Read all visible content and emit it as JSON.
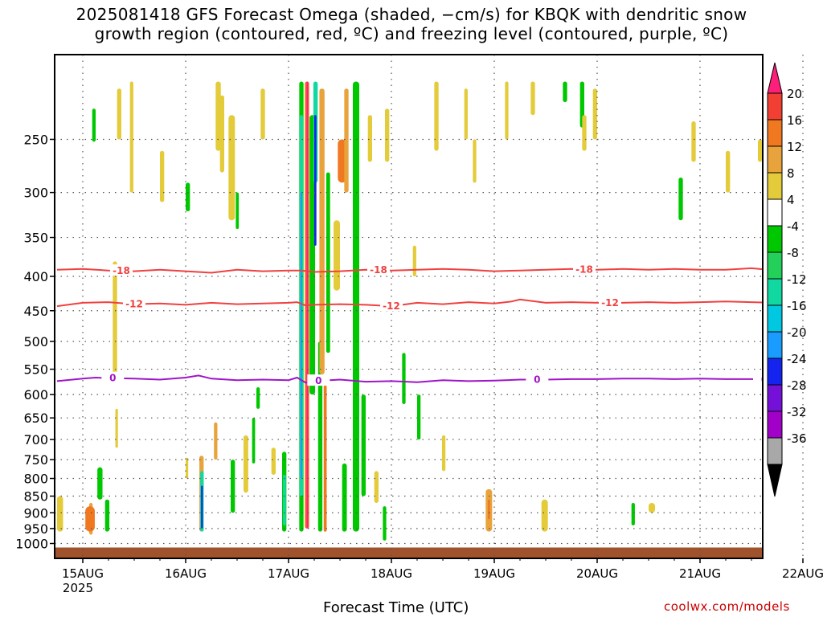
{
  "title": {
    "line1": "2025081418 GFS Forecast Omega (shaded, −cm/s) for KBQK with dendritic snow",
    "line2": "growth region (contoured, red, ºC) and freezing level (contoured, purple, ºC)"
  },
  "credit": "coolwx.com/models",
  "chart_data": {
    "type": "heatmap",
    "xlabel": "Forecast Time (UTC)",
    "ylabel": "",
    "x_ticks": [
      "15AUG",
      "16AUG",
      "17AUG",
      "18AUG",
      "19AUG",
      "20AUG",
      "21AUG",
      "22AUG"
    ],
    "x_tick_sub": "2025",
    "x_range_hours": [
      -6,
      177
    ],
    "y_ticks": [
      250,
      300,
      350,
      400,
      450,
      500,
      550,
      600,
      650,
      700,
      750,
      800,
      850,
      900,
      950,
      1000
    ],
    "y_range_hpa": [
      200,
      1000
    ],
    "y_scale": "log",
    "grid": true,
    "colorbar": {
      "labels": [
        "20",
        "16",
        "12",
        "8",
        "4",
        "-4",
        "-8",
        "-12",
        "-16",
        "-20",
        "-24",
        "-28",
        "-32",
        "-36"
      ],
      "colors": [
        "#ff1f7a",
        "#f23f33",
        "#f07820",
        "#e8a33c",
        "#e4cb3a",
        "#ffffff",
        "#00c800",
        "#22d05a",
        "#10d8a0",
        "#00c8e0",
        "#1a9cff",
        "#1424ee",
        "#7410d8",
        "#a000c8",
        "#a8a8a8",
        "#000000"
      ]
    },
    "contours": {
      "dendritic": [
        {
          "value": -18,
          "label": "-18",
          "color": "#f04040",
          "label_hours": [
            9,
            69,
            117,
            171
          ],
          "points": [
            [
              -6,
              391
            ],
            [
              0,
              390
            ],
            [
              6,
              392
            ],
            [
              12,
              393
            ],
            [
              18,
              391
            ],
            [
              24,
              393
            ],
            [
              30,
              395
            ],
            [
              36,
              391
            ],
            [
              42,
              393
            ],
            [
              48,
              392
            ],
            [
              51,
              392
            ],
            [
              54,
              394
            ],
            [
              60,
              393
            ],
            [
              66,
              391
            ],
            [
              72,
              392
            ],
            [
              78,
              391
            ],
            [
              84,
              390
            ],
            [
              90,
              391
            ],
            [
              96,
              393
            ],
            [
              102,
              392
            ],
            [
              108,
              391
            ],
            [
              114,
              390
            ],
            [
              120,
              391
            ],
            [
              126,
              390
            ],
            [
              132,
              391
            ],
            [
              138,
              390
            ],
            [
              144,
              391
            ],
            [
              150,
              391
            ],
            [
              156,
              389
            ],
            [
              162,
              392
            ],
            [
              168,
              391
            ],
            [
              172,
              385
            ],
            [
              174,
              374
            ],
            [
              176,
              375
            ],
            [
              177,
              388
            ]
          ]
        },
        {
          "value": -12,
          "label": "-12",
          "color": "#f04040",
          "label_hours": [
            12,
            72,
            123,
            171
          ],
          "points": [
            [
              -6,
              443
            ],
            [
              0,
              438
            ],
            [
              6,
              437
            ],
            [
              12,
              440
            ],
            [
              18,
              439
            ],
            [
              24,
              441
            ],
            [
              30,
              438
            ],
            [
              36,
              440
            ],
            [
              42,
              439
            ],
            [
              48,
              438
            ],
            [
              50,
              437
            ],
            [
              52,
              442
            ],
            [
              54,
              441
            ],
            [
              60,
              440
            ],
            [
              66,
              441
            ],
            [
              72,
              443
            ],
            [
              78,
              438
            ],
            [
              84,
              440
            ],
            [
              90,
              437
            ],
            [
              96,
              439
            ],
            [
              100,
              436
            ],
            [
              102,
              433
            ],
            [
              108,
              438
            ],
            [
              114,
              437
            ],
            [
              120,
              438
            ],
            [
              126,
              438
            ],
            [
              132,
              437
            ],
            [
              138,
              438
            ],
            [
              144,
              437
            ],
            [
              150,
              436
            ],
            [
              156,
              437
            ],
            [
              162,
              438
            ],
            [
              168,
              436
            ],
            [
              172,
              426
            ],
            [
              174,
              426
            ],
            [
              177,
              440
            ]
          ]
        },
        {
          "value": 0,
          "label": "0",
          "color": "#a014c8",
          "label_hours": [
            7,
            55,
            106,
            159
          ],
          "points": [
            [
              -6,
              573
            ],
            [
              0,
              568
            ],
            [
              3,
              566
            ],
            [
              6,
              567
            ],
            [
              12,
              568
            ],
            [
              18,
              570
            ],
            [
              24,
              566
            ],
            [
              27,
              562
            ],
            [
              30,
              568
            ],
            [
              36,
              571
            ],
            [
              42,
              570
            ],
            [
              48,
              571
            ],
            [
              50,
              566
            ],
            [
              52,
              576
            ],
            [
              54,
              573
            ],
            [
              60,
              570
            ],
            [
              66,
              574
            ],
            [
              72,
              573
            ],
            [
              78,
              575
            ],
            [
              84,
              571
            ],
            [
              90,
              573
            ],
            [
              96,
              572
            ],
            [
              102,
              570
            ],
            [
              108,
              570
            ],
            [
              114,
              569
            ],
            [
              120,
              569
            ],
            [
              126,
              568
            ],
            [
              132,
              568
            ],
            [
              138,
              569
            ],
            [
              144,
              568
            ],
            [
              150,
              569
            ],
            [
              156,
              569
            ],
            [
              162,
              571
            ],
            [
              168,
              569
            ],
            [
              170,
              563
            ],
            [
              174,
              563
            ],
            [
              177,
              572
            ]
          ]
        }
      ]
    },
    "shaded_regions": [
      {
        "x0": 2.2,
        "x1": 3.0,
        "p0": 225,
        "p1": 252,
        "value": -6
      },
      {
        "x0": 1.5,
        "x1": 2.3,
        "p0": 870,
        "p1": 970,
        "value": 10
      },
      {
        "x0": 0.6,
        "x1": 2.8,
        "p0": 880,
        "p1": 960,
        "value": 12
      },
      {
        "x0": -6.0,
        "x1": -4.6,
        "p0": 850,
        "p1": 960,
        "value": 5
      },
      {
        "x0": 5.2,
        "x1": 6.2,
        "p0": 860,
        "p1": 960,
        "value": -6
      },
      {
        "x0": 3.4,
        "x1": 4.6,
        "p0": 770,
        "p1": 860,
        "value": -6
      },
      {
        "x0": 7.0,
        "x1": 8.0,
        "p0": 380,
        "p1": 560,
        "value": 5
      },
      {
        "x0": 7.6,
        "x1": 8.2,
        "p0": 630,
        "p1": 720,
        "value": 5
      },
      {
        "x0": 11.0,
        "x1": 11.8,
        "p0": 205,
        "p1": 300,
        "value": 5
      },
      {
        "x0": 24.0,
        "x1": 24.6,
        "p0": 745,
        "p1": 800,
        "value": 5
      },
      {
        "x0": 27.2,
        "x1": 28.2,
        "p0": 740,
        "p1": 960,
        "value": 8
      },
      {
        "x0": 27.4,
        "x1": 28.2,
        "p0": 780,
        "p1": 960,
        "value": -14
      },
      {
        "x0": 27.6,
        "x1": 28.0,
        "p0": 820,
        "p1": 950,
        "value": -26
      },
      {
        "x0": 24.0,
        "x1": 25.0,
        "p0": 290,
        "p1": 320,
        "value": -6
      },
      {
        "x0": 30.6,
        "x1": 31.4,
        "p0": 660,
        "p1": 750,
        "value": 10
      },
      {
        "x0": 34.5,
        "x1": 35.5,
        "p0": 750,
        "p1": 900,
        "value": -6
      },
      {
        "x0": 37.5,
        "x1": 38.6,
        "p0": 690,
        "p1": 840,
        "value": 5
      },
      {
        "x0": 39.5,
        "x1": 40.2,
        "p0": 650,
        "p1": 760,
        "value": -6
      },
      {
        "x0": 40.5,
        "x1": 41.3,
        "p0": 585,
        "p1": 630,
        "value": -6
      },
      {
        "x0": 18.0,
        "x1": 19.0,
        "p0": 260,
        "p1": 310,
        "value": 5
      },
      {
        "x0": 8.0,
        "x1": 9.0,
        "p0": 210,
        "p1": 250,
        "value": 5
      },
      {
        "x0": 31.0,
        "x1": 32.2,
        "p0": 205,
        "p1": 260,
        "value": 5
      },
      {
        "x0": 32.0,
        "x1": 33.0,
        "p0": 215,
        "p1": 280,
        "value": 5
      },
      {
        "x0": 34.0,
        "x1": 35.5,
        "p0": 230,
        "p1": 330,
        "value": 5
      },
      {
        "x0": 35.7,
        "x1": 36.4,
        "p0": 300,
        "p1": 340,
        "value": -6
      },
      {
        "x0": 41.5,
        "x1": 42.5,
        "p0": 210,
        "p1": 250,
        "value": 5
      },
      {
        "x0": 44.0,
        "x1": 45.0,
        "p0": 720,
        "p1": 790,
        "value": 5
      },
      {
        "x0": 46.5,
        "x1": 47.5,
        "p0": 730,
        "p1": 960,
        "value": -6
      },
      {
        "x0": 46.7,
        "x1": 47.4,
        "p0": 790,
        "p1": 940,
        "value": -14
      },
      {
        "x0": 50.5,
        "x1": 51.5,
        "p0": 205,
        "p1": 960,
        "value": -6
      },
      {
        "x0": 50.6,
        "x1": 51.4,
        "p0": 230,
        "p1": 850,
        "value": -14
      },
      {
        "x0": 50.8,
        "x1": 51.2,
        "p0": 300,
        "p1": 800,
        "value": -21
      },
      {
        "x0": 51.8,
        "x1": 52.8,
        "p0": 205,
        "p1": 950,
        "value": 14
      },
      {
        "x0": 52.2,
        "x1": 52.6,
        "p0": 205,
        "p1": 950,
        "value": 22
      },
      {
        "x0": 52.9,
        "x1": 54.2,
        "p0": 230,
        "p1": 600,
        "value": -6
      },
      {
        "x0": 53.8,
        "x1": 54.8,
        "p0": 205,
        "p1": 290,
        "value": -14
      },
      {
        "x0": 54.0,
        "x1": 54.5,
        "p0": 230,
        "p1": 360,
        "value": -26
      },
      {
        "x0": 54.9,
        "x1": 55.9,
        "p0": 500,
        "p1": 960,
        "value": -6
      },
      {
        "x0": 55.2,
        "x1": 56.4,
        "p0": 210,
        "p1": 560,
        "value": 10
      },
      {
        "x0": 56.2,
        "x1": 56.9,
        "p0": 560,
        "p1": 960,
        "value": 14
      },
      {
        "x0": 56.8,
        "x1": 57.7,
        "p0": 280,
        "p1": 520,
        "value": -6
      },
      {
        "x0": 58.5,
        "x1": 60.0,
        "p0": 330,
        "p1": 420,
        "value": 5
      },
      {
        "x0": 59.5,
        "x1": 61.5,
        "p0": 250,
        "p1": 290,
        "value": 12
      },
      {
        "x0": 61.0,
        "x1": 62.0,
        "p0": 210,
        "p1": 300,
        "value": 10
      },
      {
        "x0": 60.5,
        "x1": 61.6,
        "p0": 760,
        "p1": 960,
        "value": -6
      },
      {
        "x0": 63.0,
        "x1": 64.5,
        "p0": 205,
        "p1": 960,
        "value": -6
      },
      {
        "x0": 65.0,
        "x1": 66.0,
        "p0": 600,
        "p1": 850,
        "value": -6
      },
      {
        "x0": 66.5,
        "x1": 67.5,
        "p0": 230,
        "p1": 270,
        "value": 5
      },
      {
        "x0": 68.0,
        "x1": 69.0,
        "p0": 780,
        "p1": 870,
        "value": 5
      },
      {
        "x0": 70.5,
        "x1": 71.5,
        "p0": 225,
        "p1": 270,
        "value": 5
      },
      {
        "x0": 70.0,
        "x1": 70.8,
        "p0": 880,
        "p1": 990,
        "value": -6
      },
      {
        "x0": 74.5,
        "x1": 75.3,
        "p0": 520,
        "p1": 620,
        "value": -6
      },
      {
        "x0": 77.0,
        "x1": 77.8,
        "p0": 360,
        "p1": 400,
        "value": 5
      },
      {
        "x0": 78.0,
        "x1": 78.8,
        "p0": 600,
        "p1": 700,
        "value": -6
      },
      {
        "x0": 82.0,
        "x1": 83.0,
        "p0": 205,
        "p1": 260,
        "value": 5
      },
      {
        "x0": 83.8,
        "x1": 84.6,
        "p0": 690,
        "p1": 780,
        "value": 5
      },
      {
        "x0": 89.0,
        "x1": 89.8,
        "p0": 210,
        "p1": 250,
        "value": 5
      },
      {
        "x0": 91.0,
        "x1": 91.8,
        "p0": 250,
        "p1": 290,
        "value": 5
      },
      {
        "x0": 94.0,
        "x1": 95.5,
        "p0": 830,
        "p1": 960,
        "value": 10
      },
      {
        "x0": 94.5,
        "x1": 95.0,
        "p0": 860,
        "p1": 920,
        "value": 12
      },
      {
        "x0": 98.5,
        "x1": 99.3,
        "p0": 205,
        "p1": 250,
        "value": 5
      },
      {
        "x0": 104.5,
        "x1": 105.5,
        "p0": 205,
        "p1": 230,
        "value": 5
      },
      {
        "x0": 107.0,
        "x1": 108.5,
        "p0": 860,
        "p1": 960,
        "value": 5
      },
      {
        "x0": 112.0,
        "x1": 113.0,
        "p0": 205,
        "p1": 220,
        "value": -6
      },
      {
        "x0": 116.0,
        "x1": 117.0,
        "p0": 205,
        "p1": 240,
        "value": -6
      },
      {
        "x0": 116.5,
        "x1": 117.5,
        "p0": 230,
        "p1": 260,
        "value": 5
      },
      {
        "x0": 119.0,
        "x1": 120.0,
        "p0": 210,
        "p1": 250,
        "value": 5
      },
      {
        "x0": 128.0,
        "x1": 128.8,
        "p0": 870,
        "p1": 940,
        "value": -6
      },
      {
        "x0": 132.0,
        "x1": 133.5,
        "p0": 870,
        "p1": 900,
        "value": 5
      },
      {
        "x0": 139.0,
        "x1": 140.0,
        "p0": 285,
        "p1": 330,
        "value": -6
      },
      {
        "x0": 142.0,
        "x1": 143.0,
        "p0": 235,
        "p1": 270,
        "value": 5
      },
      {
        "x0": 150.0,
        "x1": 151.0,
        "p0": 260,
        "p1": 300,
        "value": 5
      },
      {
        "x0": 157.5,
        "x1": 158.5,
        "p0": 250,
        "p1": 270,
        "value": 5
      },
      {
        "x0": 162.5,
        "x1": 163.5,
        "p0": 250,
        "p1": 310,
        "value": 5
      },
      {
        "x0": 167.5,
        "x1": 173.0,
        "p0": 205,
        "p1": 970,
        "value": -6
      },
      {
        "x0": 168.0,
        "x1": 172.8,
        "p0": 210,
        "p1": 960,
        "value": -14
      },
      {
        "x0": 168.7,
        "x1": 172.3,
        "p0": 215,
        "p1": 950,
        "value": -21
      },
      {
        "x0": 169.3,
        "x1": 171.9,
        "p0": 220,
        "p1": 920,
        "value": -26
      },
      {
        "x0": 168.5,
        "x1": 170.0,
        "p0": 800,
        "p1": 900,
        "value": -30
      },
      {
        "x0": 169.6,
        "x1": 171.6,
        "p0": 225,
        "p1": 850,
        "value": -40
      },
      {
        "x0": 173.0,
        "x1": 174.2,
        "p0": 300,
        "p1": 480,
        "value": 10
      },
      {
        "x0": 173.2,
        "x1": 174.0,
        "p0": 420,
        "p1": 470,
        "value": 14
      },
      {
        "x0": 172.8,
        "x1": 174.0,
        "p0": 650,
        "p1": 950,
        "value": -6
      },
      {
        "x0": 175.0,
        "x1": 176.5,
        "p0": 205,
        "p1": 230,
        "value": -6
      },
      {
        "x0": 175.0,
        "x1": 176.0,
        "p0": 320,
        "p1": 360,
        "value": 5
      }
    ],
    "ground": {
      "color": "#a0522d"
    }
  }
}
